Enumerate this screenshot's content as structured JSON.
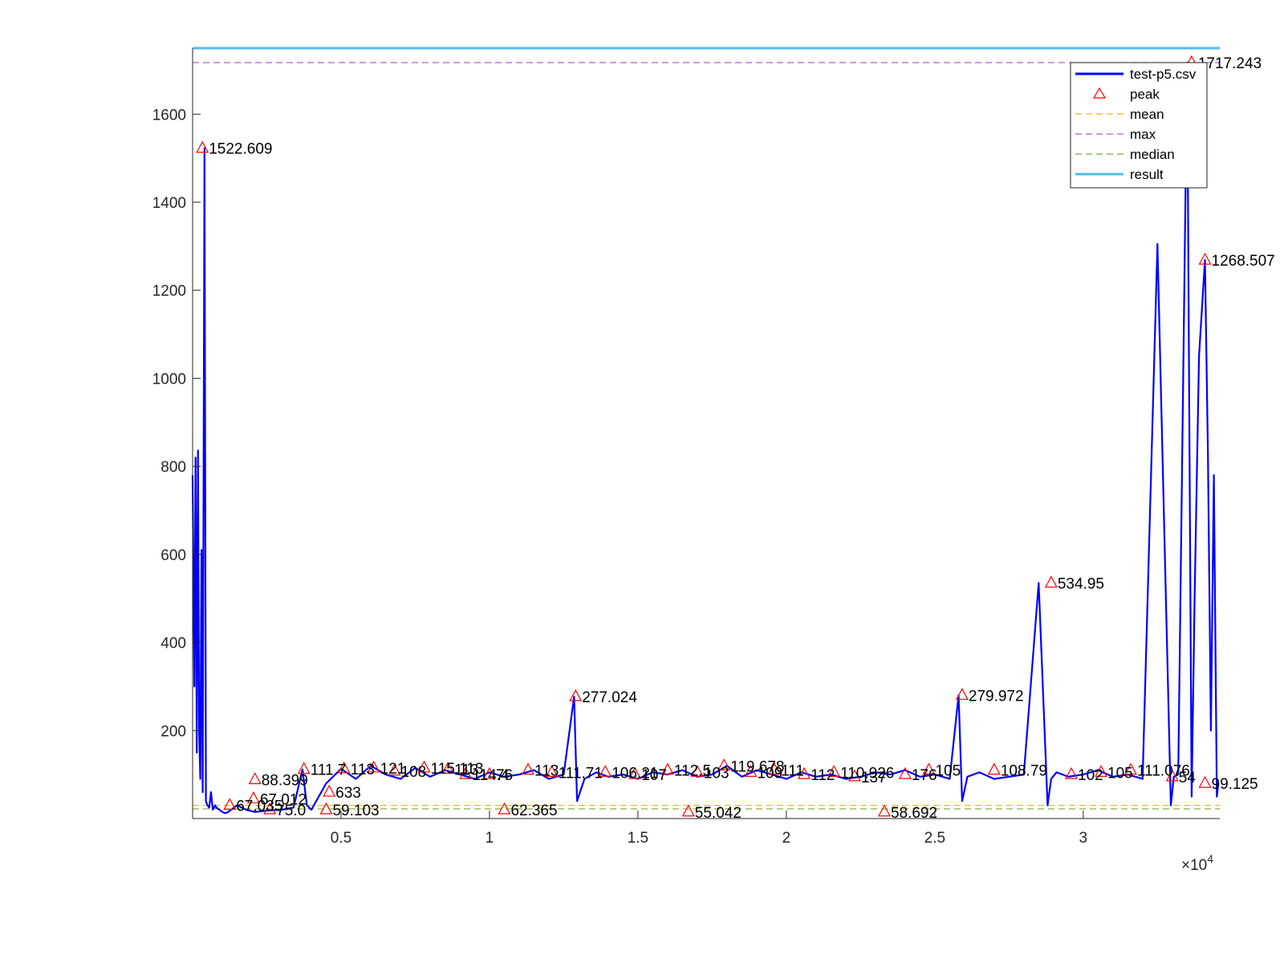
{
  "chart_data": {
    "type": "line",
    "title": "",
    "xlabel": "",
    "ylabel": "",
    "xlim": [
      0,
      34600
    ],
    "ylim": [
      0,
      1750
    ],
    "x_exponent_label": "×10",
    "x_exponent_power": "4",
    "x_ticks": [
      {
        "value": 5000,
        "label": "0.5"
      },
      {
        "value": 10000,
        "label": "1"
      },
      {
        "value": 15000,
        "label": "1.5"
      },
      {
        "value": 20000,
        "label": "2"
      },
      {
        "value": 25000,
        "label": "2.5"
      },
      {
        "value": 30000,
        "label": "3"
      }
    ],
    "y_ticks": [
      {
        "value": 200,
        "label": "200"
      },
      {
        "value": 400,
        "label": "400"
      },
      {
        "value": 600,
        "label": "600"
      },
      {
        "value": 800,
        "label": "800"
      },
      {
        "value": 1000,
        "label": "1000"
      },
      {
        "value": 1200,
        "label": "1200"
      },
      {
        "value": 1400,
        "label": "1400"
      },
      {
        "value": 1600,
        "label": "1600"
      }
    ],
    "legend_position": "top-right",
    "series": [
      {
        "name": "test-p5.csv",
        "kind": "signal",
        "color": "#0000ff",
        "x": [
          0,
          60,
          100,
          140,
          180,
          220,
          260,
          300,
          340,
          400,
          450,
          500,
          560,
          620,
          680,
          760,
          800,
          900,
          1000,
          1100,
          1200,
          1300,
          1500,
          1800,
          2100,
          2500,
          3000,
          3400,
          3700,
          3850,
          4000,
          4500,
          5000,
          5500,
          6000,
          6500,
          7000,
          7500,
          8000,
          8500,
          9000,
          9500,
          10000,
          10500,
          11000,
          11500,
          12000,
          12500,
          12850,
          12950,
          13200,
          13600,
          14000,
          14500,
          15000,
          15500,
          16000,
          16500,
          17000,
          17500,
          18000,
          18500,
          19000,
          19500,
          20000,
          20500,
          21000,
          21500,
          22000,
          22500,
          23000,
          23500,
          24000,
          24500,
          25000,
          25500,
          25800,
          25920,
          26100,
          26500,
          27000,
          27500,
          28000,
          28500,
          28800,
          28920,
          29100,
          29500,
          30000,
          30500,
          31000,
          31500,
          32000,
          32500,
          32950,
          33050,
          33200,
          33500,
          33650,
          33750,
          33900,
          34100,
          34200,
          34300,
          34400,
          34500,
          34550
        ],
        "y": [
          780,
          300,
          820,
          150,
          836,
          200,
          90,
          610,
          60,
          1522.609,
          40,
          30,
          25,
          60,
          20,
          30,
          25,
          20,
          15,
          12,
          15,
          20,
          30,
          20,
          15,
          18,
          20,
          25,
          111.7,
          30,
          20,
          80,
          113,
          90,
          120,
          100,
          90,
          115,
          95,
          110,
          100,
          90,
          105,
          95,
          100,
          110,
          90,
          100,
          277.024,
          40,
          90,
          105,
          95,
          100,
          90,
          105,
          100,
          110,
          95,
          100,
          119.678,
          95,
          110,
          100,
          90,
          105,
          95,
          100,
          90,
          95,
          105,
          100,
          110,
          95,
          100,
          90,
          279.972,
          40,
          95,
          105,
          90,
          95,
          100,
          534.95,
          30,
          90,
          105,
          95,
          100,
          110,
          95,
          100,
          90,
          1305,
          30,
          95,
          100,
          1717.243,
          50,
          500,
          1050,
          1268.507,
          830,
          200,
          780,
          50,
          80
        ]
      },
      {
        "name": "peak",
        "kind": "markers",
        "color": "#ff0000"
      },
      {
        "name": "mean",
        "kind": "hline",
        "color": "#edb120",
        "value": 30
      },
      {
        "name": "max",
        "kind": "hline",
        "color": "#b05cc6",
        "value": 1717.243
      },
      {
        "name": "median",
        "kind": "hline",
        "color": "#77ac30",
        "value": 22
      },
      {
        "name": "result",
        "kind": "hline",
        "color": "#4dbeee",
        "value": 1750
      }
    ],
    "peaks": [
      {
        "x": 330,
        "y": 1522.609,
        "label": "1522.609"
      },
      {
        "x": 1250,
        "y": 30,
        "label": "67.035"
      },
      {
        "x": 2050,
        "y": 45,
        "label": "67.012"
      },
      {
        "x": 2100,
        "y": 88.399,
        "label": "88.399"
      },
      {
        "x": 2600,
        "y": 20,
        "label": "75.0"
      },
      {
        "x": 3750,
        "y": 111.7,
        "label": "111.7"
      },
      {
        "x": 4500,
        "y": 20,
        "label": "59.103"
      },
      {
        "x": 4600,
        "y": 60,
        "label": "633"
      },
      {
        "x": 5100,
        "y": 113,
        "label": "113"
      },
      {
        "x": 6100,
        "y": 115,
        "label": "121"
      },
      {
        "x": 6800,
        "y": 108,
        "label": "108"
      },
      {
        "x": 7800,
        "y": 115,
        "label": "115.113"
      },
      {
        "x": 8600,
        "y": 112,
        "label": "113"
      },
      {
        "x": 9200,
        "y": 100,
        "label": "114.4"
      },
      {
        "x": 10000,
        "y": 100,
        "label": "76"
      },
      {
        "x": 10500,
        "y": 20,
        "label": "62.365"
      },
      {
        "x": 11300,
        "y": 110,
        "label": "113"
      },
      {
        "x": 12100,
        "y": 105,
        "label": "111.71"
      },
      {
        "x": 12900,
        "y": 277.024,
        "label": "277.024"
      },
      {
        "x": 13900,
        "y": 105,
        "label": "106.21"
      },
      {
        "x": 14900,
        "y": 100,
        "label": "107"
      },
      {
        "x": 16000,
        "y": 110,
        "label": "112.5"
      },
      {
        "x": 16700,
        "y": 15,
        "label": "55.042"
      },
      {
        "x": 17000,
        "y": 105,
        "label": "103"
      },
      {
        "x": 17900,
        "y": 119.678,
        "label": "119.678"
      },
      {
        "x": 18800,
        "y": 105,
        "label": "109"
      },
      {
        "x": 19600,
        "y": 110,
        "label": "111"
      },
      {
        "x": 20600,
        "y": 100,
        "label": "112"
      },
      {
        "x": 21600,
        "y": 105,
        "label": "110.926"
      },
      {
        "x": 22300,
        "y": 95,
        "label": "137"
      },
      {
        "x": 23300,
        "y": 15,
        "label": "58.692"
      },
      {
        "x": 24000,
        "y": 100,
        "label": "176"
      },
      {
        "x": 24800,
        "y": 110,
        "label": "105"
      },
      {
        "x": 25920,
        "y": 279.972,
        "label": "279.972"
      },
      {
        "x": 27000,
        "y": 110,
        "label": "108.79"
      },
      {
        "x": 28920,
        "y": 534.95,
        "label": "534.95"
      },
      {
        "x": 29600,
        "y": 100,
        "label": "102"
      },
      {
        "x": 30600,
        "y": 105,
        "label": "105"
      },
      {
        "x": 31600,
        "y": 110,
        "label": "111.076"
      },
      {
        "x": 33650,
        "y": 1717.243,
        "label": "1717.243"
      },
      {
        "x": 33000,
        "y": 95,
        "label": "54"
      },
      {
        "x": 34100,
        "y": 1268.507,
        "label": "1268.507"
      },
      {
        "x": 34100,
        "y": 80,
        "label": "99.125"
      }
    ]
  }
}
